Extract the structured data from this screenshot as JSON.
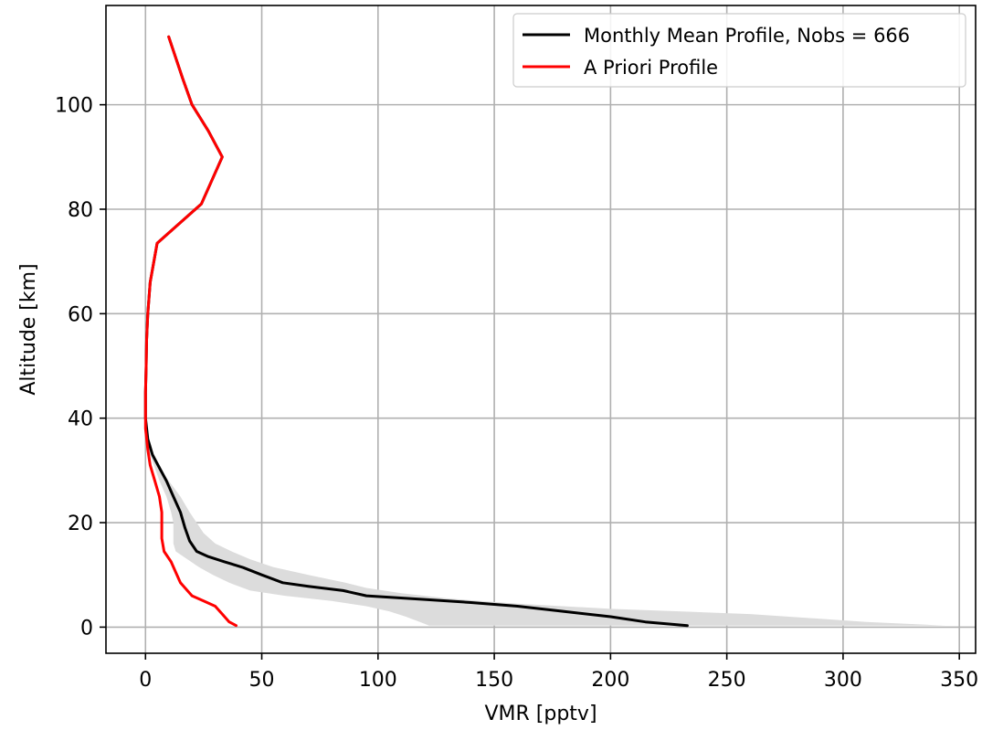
{
  "chart_data": {
    "type": "line",
    "xlabel": "VMR [pptv]",
    "ylabel": "Altitude [km]",
    "xlim": [
      -17,
      357
    ],
    "ylim": [
      -5,
      119
    ],
    "xticks": [
      0,
      50,
      100,
      150,
      200,
      250,
      300,
      350
    ],
    "yticks": [
      0,
      20,
      40,
      60,
      80,
      100
    ],
    "grid": true,
    "legend_position": "top-right",
    "colors": {
      "mean": "#000000",
      "apriori": "#ff0000",
      "band": "#dcdcdc",
      "grid": "#b0b0b0"
    },
    "series": [
      {
        "name": "Monthly Mean Profile, Nobs = 666",
        "color": "#000000",
        "points": [
          [
            233,
            0.3
          ],
          [
            215,
            1.0
          ],
          [
            200,
            2.0
          ],
          [
            180,
            3.0
          ],
          [
            160,
            4.0
          ],
          [
            140,
            4.7
          ],
          [
            120,
            5.3
          ],
          [
            95,
            6.0
          ],
          [
            85,
            7.0
          ],
          [
            70,
            7.8
          ],
          [
            59,
            8.5
          ],
          [
            50,
            10.0
          ],
          [
            42,
            11.4
          ],
          [
            34,
            12.5
          ],
          [
            27,
            13.5
          ],
          [
            22,
            14.5
          ],
          [
            19,
            16.5
          ],
          [
            17,
            19.0
          ],
          [
            15,
            22.0
          ],
          [
            12,
            25.0
          ],
          [
            9,
            28.0
          ],
          [
            6,
            30.5
          ],
          [
            3,
            33.0
          ],
          [
            1,
            36.0
          ],
          [
            0,
            40.0
          ],
          [
            0,
            45.0
          ],
          [
            0.3,
            50.0
          ],
          [
            0.5,
            55.0
          ],
          [
            1,
            60.0
          ],
          [
            2,
            66.0
          ],
          [
            5,
            73.5
          ],
          [
            24,
            81.0
          ],
          [
            33,
            90.0
          ],
          [
            27,
            95.0
          ],
          [
            20,
            100.0
          ],
          [
            16,
            105.0
          ],
          [
            10,
            113.0
          ]
        ]
      },
      {
        "name": "A Priori Profile",
        "color": "#ff0000",
        "points": [
          [
            39,
            0.3
          ],
          [
            36,
            1.0
          ],
          [
            33,
            2.5
          ],
          [
            30,
            4.0
          ],
          [
            25,
            5.0
          ],
          [
            20,
            6.0
          ],
          [
            18,
            7.0
          ],
          [
            15,
            8.5
          ],
          [
            13,
            10.5
          ],
          [
            11,
            12.5
          ],
          [
            8,
            14.5
          ],
          [
            7,
            17.0
          ],
          [
            7,
            20.0
          ],
          [
            7,
            22.0
          ],
          [
            6,
            25.0
          ],
          [
            4,
            28.0
          ],
          [
            2,
            31.0
          ],
          [
            1,
            34.0
          ],
          [
            0,
            38.0
          ],
          [
            0,
            45.0
          ],
          [
            0.3,
            50.0
          ],
          [
            0.5,
            55.0
          ],
          [
            1,
            60.0
          ],
          [
            2,
            66.0
          ],
          [
            5,
            73.5
          ],
          [
            24,
            81.0
          ],
          [
            33,
            90.0
          ],
          [
            27,
            95.0
          ],
          [
            20,
            100.0
          ],
          [
            16,
            105.0
          ],
          [
            10,
            113.0
          ]
        ]
      }
    ],
    "spread_band": {
      "upper": [
        [
          344,
          0.3
        ],
        [
          310,
          1.0
        ],
        [
          260,
          2.5
        ],
        [
          200,
          3.5
        ],
        [
          160,
          4.5
        ],
        [
          130,
          5.5
        ],
        [
          110,
          6.5
        ],
        [
          95,
          7.5
        ],
        [
          86,
          8.5
        ],
        [
          70,
          10.0
        ],
        [
          55,
          11.5
        ],
        [
          45,
          13.0
        ],
        [
          37,
          14.5
        ],
        [
          30,
          16.0
        ],
        [
          25,
          18.0
        ],
        [
          22,
          20.0
        ],
        [
          19,
          22.0
        ],
        [
          15,
          25.0
        ],
        [
          10,
          28.0
        ],
        [
          6,
          30.5
        ],
        [
          3,
          33.0
        ],
        [
          1,
          36.0
        ],
        [
          0,
          40.0
        ]
      ],
      "lower": [
        [
          0,
          40.0
        ],
        [
          1,
          36.0
        ],
        [
          2,
          33.0
        ],
        [
          4,
          30.5
        ],
        [
          6,
          28.0
        ],
        [
          9,
          25.0
        ],
        [
          11,
          22.0
        ],
        [
          12,
          20.0
        ],
        [
          12,
          18.0
        ],
        [
          12,
          16.0
        ],
        [
          13,
          14.5
        ],
        [
          18,
          13.0
        ],
        [
          23,
          11.5
        ],
        [
          29,
          10.0
        ],
        [
          36,
          8.5
        ],
        [
          45,
          7.0
        ],
        [
          60,
          6.0
        ],
        [
          80,
          5.0
        ],
        [
          95,
          4.0
        ],
        [
          105,
          3.0
        ],
        [
          112,
          2.0
        ],
        [
          118,
          1.0
        ],
        [
          122,
          0.3
        ]
      ]
    }
  }
}
